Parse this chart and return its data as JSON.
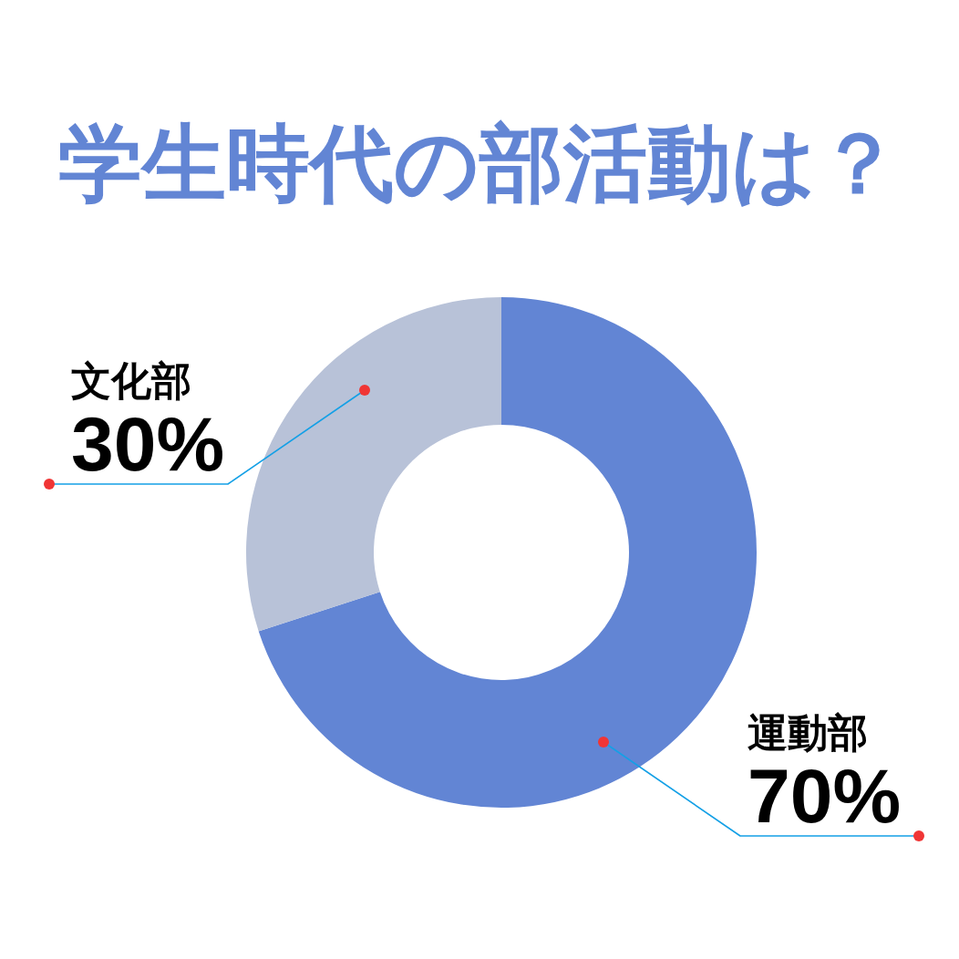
{
  "chart_data": {
    "type": "donut",
    "title": "学生時代の部活動は？",
    "categories": [
      "運動部",
      "文化部"
    ],
    "values": [
      70,
      30
    ],
    "colors": [
      "#6285d4",
      "#b8c2d8"
    ],
    "value_labels": [
      "70%",
      "30%"
    ]
  }
}
